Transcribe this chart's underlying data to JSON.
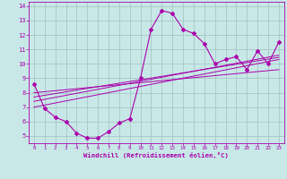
{
  "xlabel": "Windchill (Refroidissement éolien,°C)",
  "background_color": "#c8e8e8",
  "grid_color": "#a0c0c0",
  "line_color": "#aa00aa",
  "x_data": [
    0,
    1,
    2,
    3,
    4,
    5,
    6,
    7,
    8,
    9,
    10,
    11,
    12,
    13,
    14,
    15,
    16,
    17,
    18,
    19,
    20,
    21,
    22,
    23
  ],
  "y_data": [
    8.6,
    6.9,
    6.3,
    6.0,
    5.2,
    4.85,
    4.85,
    5.3,
    5.9,
    6.2,
    9.0,
    12.4,
    13.7,
    13.5,
    12.4,
    12.1,
    11.4,
    10.0,
    10.3,
    10.5,
    9.6,
    10.9,
    10.0,
    11.5
  ],
  "ylim": [
    4.5,
    14.3
  ],
  "xlim": [
    -0.5,
    23.5
  ],
  "yticks": [
    5,
    6,
    7,
    8,
    9,
    10,
    11,
    12,
    13,
    14
  ],
  "xticks": [
    0,
    1,
    2,
    3,
    4,
    5,
    6,
    7,
    8,
    9,
    10,
    11,
    12,
    13,
    14,
    15,
    16,
    17,
    18,
    19,
    20,
    21,
    22,
    23
  ],
  "reg_lines": [
    {
      "x0": 0,
      "y0": 7.0,
      "x1": 23,
      "y1": 10.3
    },
    {
      "x0": 0,
      "y0": 7.4,
      "x1": 23,
      "y1": 10.6
    },
    {
      "x0": 0,
      "y0": 7.7,
      "x1": 23,
      "y1": 10.45
    },
    {
      "x0": 0,
      "y0": 8.0,
      "x1": 23,
      "y1": 9.6
    }
  ]
}
